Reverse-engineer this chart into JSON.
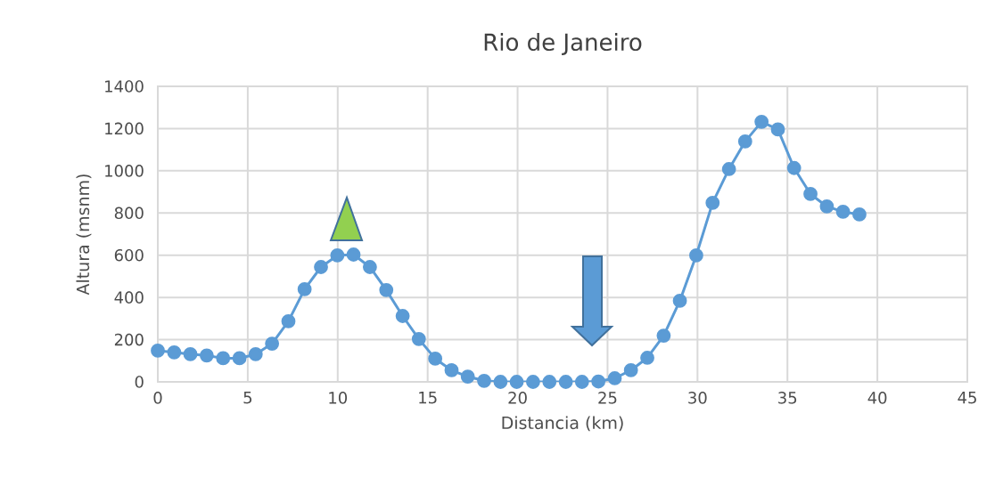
{
  "chart_data": {
    "type": "line",
    "title": "Rio de Janeiro",
    "xlabel": "Distancia (km)",
    "ylabel": "Altura (msnm)",
    "x": [
      0,
      0.91,
      1.81,
      2.72,
      3.63,
      4.54,
      5.44,
      6.35,
      7.26,
      8.16,
      9.07,
      9.98,
      10.88,
      11.79,
      12.7,
      13.61,
      14.51,
      15.42,
      16.33,
      17.23,
      18.14,
      19.05,
      19.95,
      20.86,
      21.77,
      22.68,
      23.58,
      24.49,
      25.4,
      26.3,
      27.21,
      28.12,
      29.02,
      29.93,
      30.84,
      31.75,
      32.65,
      33.56,
      34.47,
      35.37,
      36.28,
      37.19,
      38.09,
      39.0
    ],
    "series": [
      {
        "color": "#5b9bd5",
        "values": [
          148,
          140,
          131,
          125,
          112,
          112,
          131,
          181,
          287,
          439,
          544,
          599,
          603,
          544,
          435,
          312,
          203,
          110,
          55,
          25,
          5,
          0,
          0,
          0,
          0,
          0,
          0,
          2,
          17,
          55,
          114,
          219,
          384,
          599,
          848,
          1008,
          1139,
          1232,
          1196,
          1013,
          890,
          831,
          806,
          793
        ]
      }
    ],
    "xlim": [
      0,
      45
    ],
    "xticks": [
      0,
      5,
      10,
      15,
      20,
      25,
      30,
      35,
      40,
      45
    ],
    "ylim": [
      0,
      1400
    ],
    "yticks": [
      0,
      200,
      400,
      600,
      800,
      1000,
      1200,
      1400
    ],
    "grid": true,
    "marker": "circle",
    "line_style": "solid"
  }
}
